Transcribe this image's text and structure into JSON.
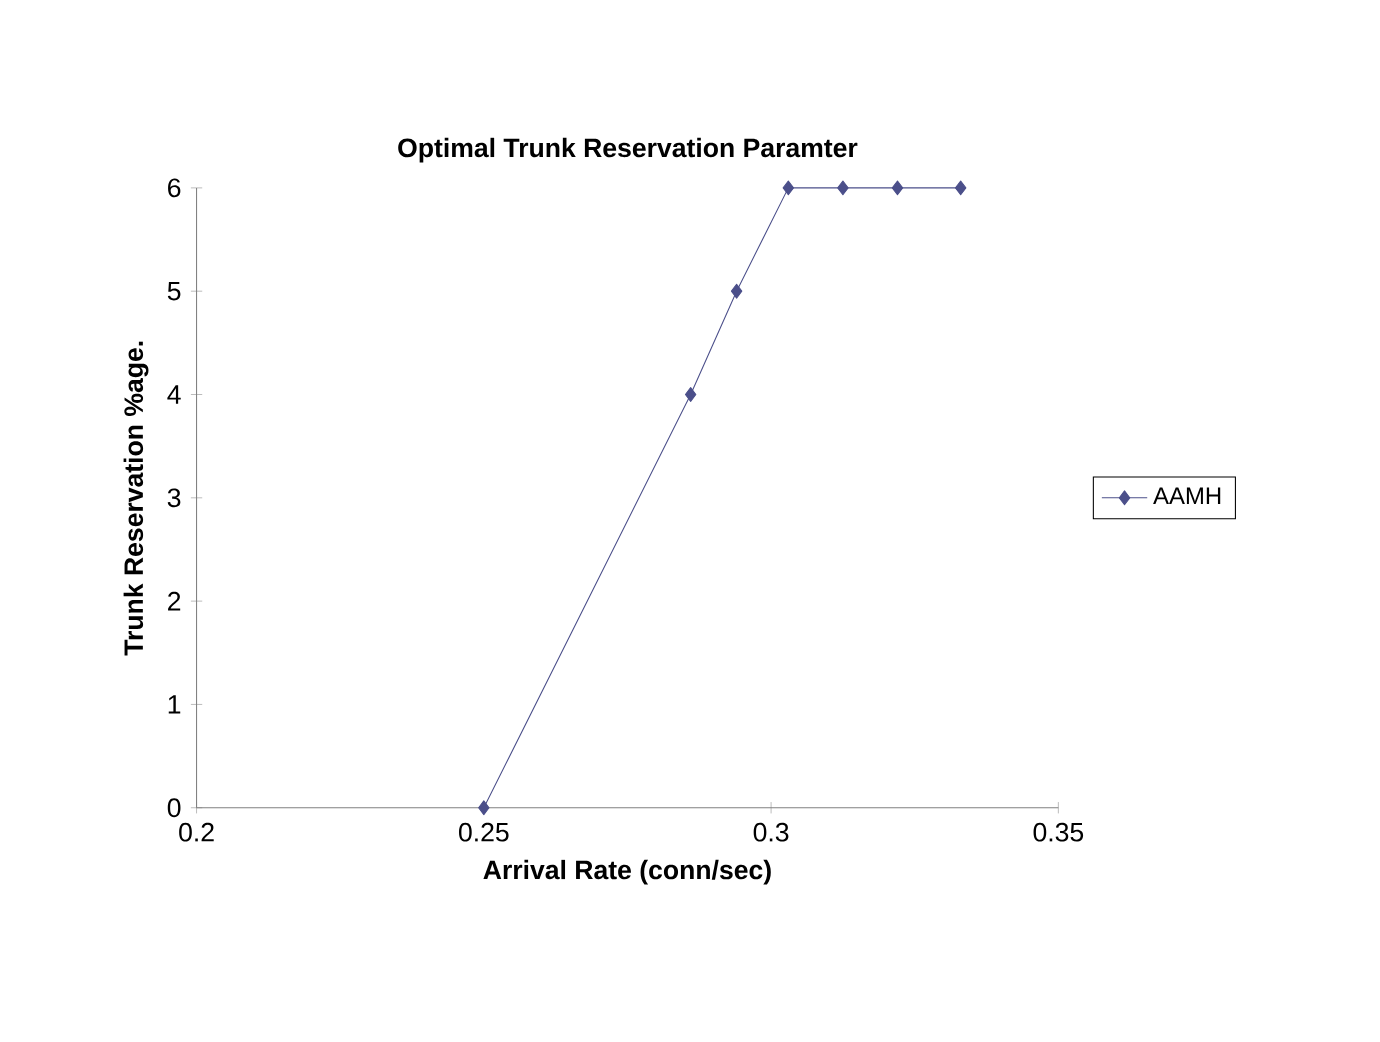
{
  "chart_data": {
    "type": "line",
    "title": "Optimal Trunk Reservation Paramter",
    "xlabel": "Arrival Rate (conn/sec)",
    "ylabel": "Trunk Reservation %age.",
    "x": [
      0.25,
      0.286,
      0.294,
      0.303,
      0.3125,
      0.322,
      0.333
    ],
    "series": [
      {
        "name": "AAMH",
        "color": "#4b4f8a",
        "values": [
          0,
          4,
          5,
          6,
          6,
          6,
          6
        ]
      }
    ],
    "xlim": [
      0.2,
      0.35
    ],
    "xticks": [
      0.2,
      0.25,
      0.3,
      0.35
    ],
    "ylim": [
      0,
      6
    ],
    "yticks": [
      0,
      1,
      2,
      3,
      4,
      5,
      6
    ],
    "legend": "right",
    "marker": "diamond",
    "line_style": "solid",
    "grid": false
  }
}
